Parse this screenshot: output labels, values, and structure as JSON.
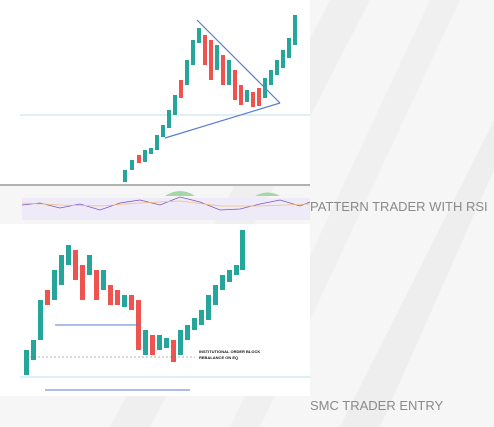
{
  "labels": {
    "rsi_title": "PATTERN TRADER WITH RSI",
    "smc_title": "SMC TRADER ENTRY",
    "ob_line1": "INSTITUTIONAL ORDER BLOCK",
    "ob_line2": "REBALANCE ON EQ"
  }
}
